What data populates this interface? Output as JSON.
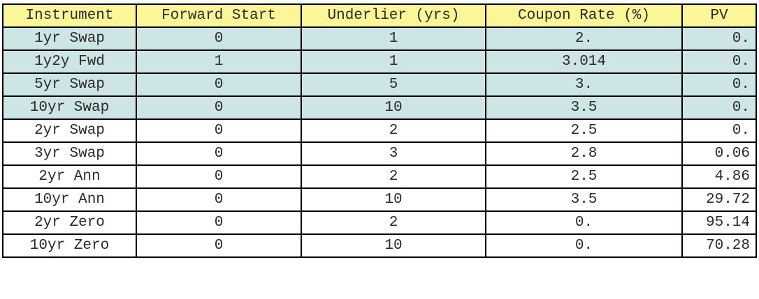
{
  "table": {
    "columns": [
      "Instrument",
      "Forward Start",
      "Underlier (yrs)",
      "Coupon Rate (%)",
      "PV"
    ],
    "rows": [
      {
        "shaded": true,
        "cells": [
          "1yr Swap",
          "0",
          "1",
          "2.",
          "0."
        ]
      },
      {
        "shaded": true,
        "cells": [
          "1y2y Fwd",
          "1",
          "1",
          "3.014",
          "0."
        ]
      },
      {
        "shaded": true,
        "cells": [
          "5yr Swap",
          "0",
          "5",
          "3.",
          "0."
        ]
      },
      {
        "shaded": true,
        "cells": [
          "10yr Swap",
          "0",
          "10",
          "3.5",
          "0."
        ]
      },
      {
        "shaded": false,
        "cells": [
          "2yr Swap",
          "0",
          "2",
          "2.5",
          "0."
        ]
      },
      {
        "shaded": false,
        "cells": [
          "3yr Swap",
          "0",
          "3",
          "2.8",
          "0.06"
        ]
      },
      {
        "shaded": false,
        "cells": [
          "2yr Ann",
          "0",
          "2",
          "2.5",
          "4.86"
        ]
      },
      {
        "shaded": false,
        "cells": [
          "10yr Ann",
          "0",
          "10",
          "3.5",
          "29.72"
        ]
      },
      {
        "shaded": false,
        "cells": [
          "2yr Zero",
          "0",
          "2",
          "0.",
          "95.14"
        ]
      },
      {
        "shaded": false,
        "cells": [
          "10yr Zero",
          "0",
          "10",
          "0.",
          "70.28"
        ]
      }
    ]
  },
  "colors": {
    "header_bg": "#fbf799",
    "shaded_row_bg": "#cde5e4",
    "plain_row_bg": "#ffffff",
    "border": "#000000"
  }
}
